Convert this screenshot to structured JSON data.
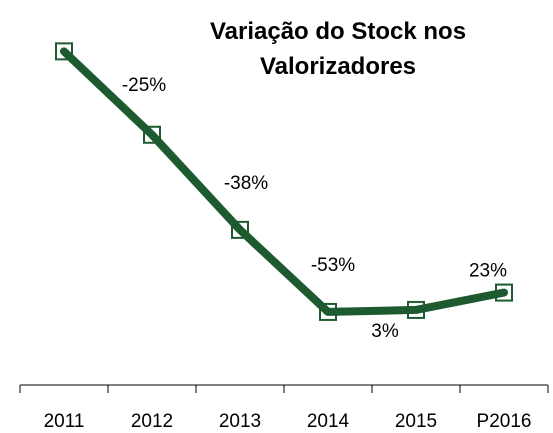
{
  "chart_data": {
    "type": "line",
    "title": "Variação do Stock nos Valorizadores",
    "categories": [
      "2011",
      "2012",
      "2013",
      "2014",
      "2015",
      "P2016"
    ],
    "values": [
      100,
      75,
      46.5,
      21.9,
      22.5,
      27.7
    ],
    "change_labels": [
      null,
      "-25%",
      "-38%",
      "-53%",
      "3%",
      "23%"
    ],
    "color": "#1d5a30",
    "ylim": [
      0,
      110
    ]
  }
}
